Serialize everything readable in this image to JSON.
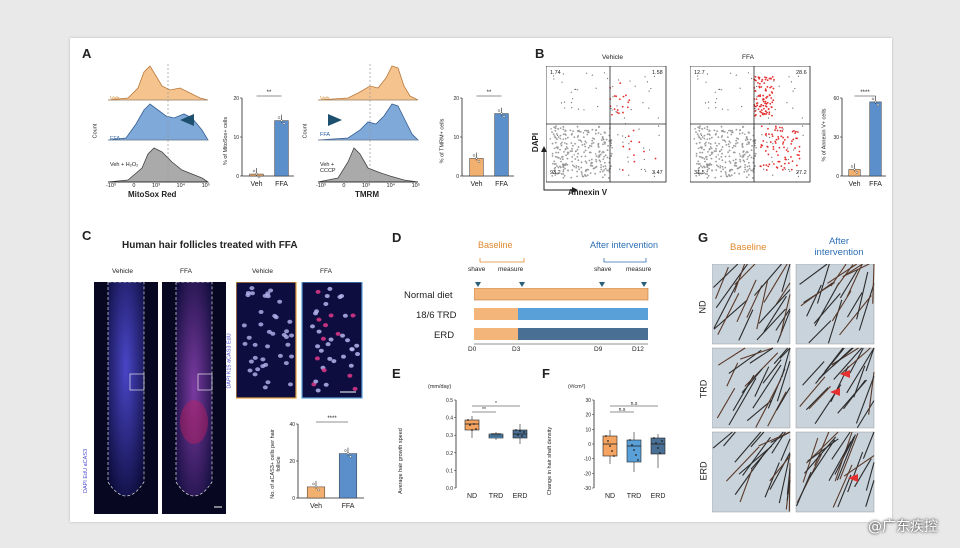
{
  "watermark": "@广东疾控",
  "panels": {
    "A": {
      "label": "A",
      "hist1_xlabel": "MitoSox Red",
      "hist2_xlabel": "TMRM",
      "count": "Count",
      "ticks": [
        "-10³",
        "0",
        "10³",
        "10⁴",
        "10⁵"
      ],
      "veh": "Veh",
      "ffa": "FFA",
      "ctrl1": "Veh + H₂O₂",
      "ctrl2": "Veh + CCCP",
      "bar1_ylabel": "% of MitoSox+ cells",
      "bar2_ylabel": "% of TMRM+ cells",
      "sig": "**"
    },
    "B": {
      "label": "B",
      "vehicle": "Vehicle",
      "ffa": "FFA",
      "dapi": "DAPI",
      "annexin": "Annexin V",
      "veh_q": [
        "1.74",
        "1.58",
        "93.2",
        "3.47"
      ],
      "ffa_q": [
        "12.7",
        "28.6",
        "31.5",
        "27.2"
      ],
      "bar_ylabel": "% of Annexin V+ cells",
      "sig": "****"
    },
    "C": {
      "label": "C",
      "title": "Human hair follicles treated with FFA",
      "vehicle": "Vehicle",
      "ffa": "FFA",
      "stain": "DAPI EdU aCAS3",
      "stain2": "DAPI K15 aCAS3 EdU",
      "bar_ylabel": "No. of aCAS3+ cells per hair follicle",
      "sig": "****"
    },
    "D": {
      "label": "D",
      "baseline": "Baseline",
      "after": "After intervention",
      "shave": "shave",
      "measure": "measure",
      "rows": [
        "Normal diet",
        "18/6 TRD",
        "ERD"
      ],
      "days": [
        "D0",
        "D3",
        "D9",
        "D12"
      ]
    },
    "E": {
      "label": "E",
      "unit": "(mm/day)",
      "ylabel": "Average hair growth speed",
      "groups": [
        "ND",
        "TRD",
        "ERD"
      ],
      "sig1": "**",
      "sig2": "*",
      "yticks": [
        "0.0",
        "0.1",
        "0.2",
        "0.3",
        "0.4",
        "0.5"
      ]
    },
    "F": {
      "label": "F",
      "unit": "(#/cm²)",
      "ylabel": "Change in hair shaft density",
      "groups": [
        "ND",
        "TRD",
        "ERD"
      ],
      "sig": "n.s",
      "yticks": [
        "-30",
        "-20",
        "-10",
        "0",
        "10",
        "20",
        "30"
      ]
    },
    "G": {
      "label": "G",
      "baseline": "Baseline",
      "after": "After intervention",
      "rows": [
        "ND",
        "TRD",
        "ERD"
      ]
    }
  },
  "colors": {
    "veh": "#f2b070",
    "ffa": "#5b8fcb",
    "ctrl": "#888888",
    "trd": "#5aa0d8",
    "erd": "#4a6f95",
    "nd": "#f4a460",
    "red": "#e53030",
    "teal": "#2a7a8a"
  },
  "chart_data": [
    {
      "type": "bar",
      "title": "MitoSox",
      "categories": [
        "Veh",
        "FFA"
      ],
      "values": [
        0.5,
        14.2
      ],
      "ylim": [
        0,
        20
      ],
      "ylabel": "% of MitoSox+ cells"
    },
    {
      "type": "bar",
      "title": "TMRM",
      "categories": [
        "Veh",
        "FFA"
      ],
      "values": [
        4.5,
        16
      ],
      "ylim": [
        0,
        20
      ],
      "ylabel": "% of TMRM+ cells"
    },
    {
      "type": "bar",
      "title": "Annexin V",
      "categories": [
        "Veh",
        "FFA"
      ],
      "values": [
        5,
        57
      ],
      "ylim": [
        0,
        60
      ],
      "ylabel": "% of Annexin V+ cells"
    },
    {
      "type": "bar",
      "title": "aCAS3",
      "categories": [
        "Veh",
        "FFA"
      ],
      "values": [
        6,
        24
      ],
      "ylim": [
        0,
        40
      ],
      "ylabel": "No. of aCAS3+ cells per hair follicle"
    }
  ]
}
